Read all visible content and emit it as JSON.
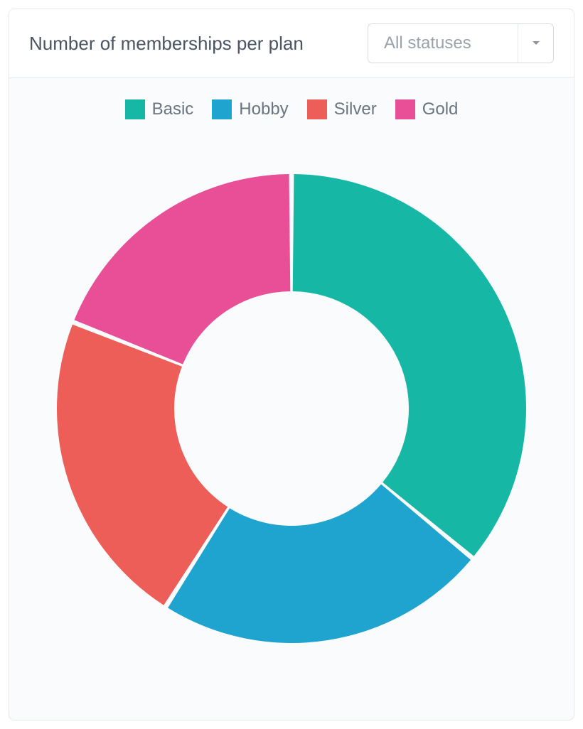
{
  "card": {
    "title": "Number of memberships per plan",
    "background": "#ffffff",
    "body_background": "#f9fbfc",
    "border_color": "#e3e7ea",
    "title_color": "#4a5562",
    "title_fontsize": 26
  },
  "filter": {
    "selected_label": "All statuses",
    "placeholder_color": "#9aa2ab",
    "border_color": "#d7dde2",
    "caret_border_color": "#e3e7ea",
    "caret_color": "#8a939c",
    "fontsize": 24
  },
  "legend": {
    "fontsize": 24,
    "label_color": "#6b7580",
    "swatch_size": 28
  },
  "chart": {
    "type": "donut",
    "outer_radius": 330,
    "inner_radius": 165,
    "gap_deg": 1.2,
    "background": "#ffffff",
    "series": [
      {
        "label": "Basic",
        "value": 36,
        "color": "#16b7a4"
      },
      {
        "label": "Hobby",
        "value": 23,
        "color": "#1fa4cf"
      },
      {
        "label": "Silver",
        "value": 22,
        "color": "#ec5e57"
      },
      {
        "label": "Gold",
        "value": 19,
        "color": "#e84f97"
      }
    ]
  }
}
